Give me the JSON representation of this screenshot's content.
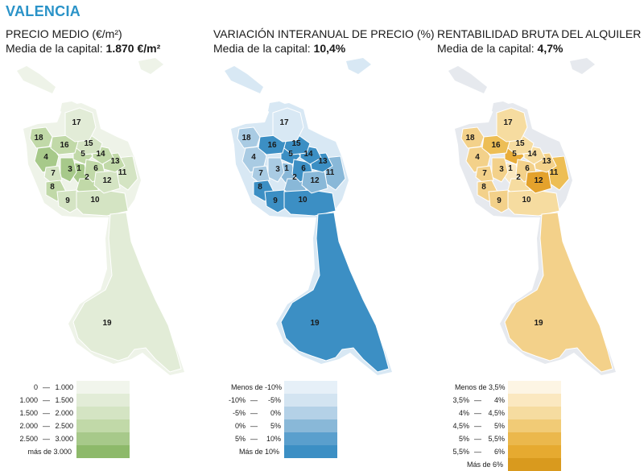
{
  "header": {
    "city": "VALENCIA"
  },
  "panels": [
    {
      "title": "PRECIO MEDIO (€/m²)",
      "subtitle_prefix": "Media de la capital: ",
      "subtitle_value": "1.870 €/m²",
      "district_colors": {
        "1": "#a7c98a",
        "2": "#c1d9a8",
        "3": "#a7c98a",
        "4": "#a7c98a",
        "5": "#c1d9a8",
        "6": "#c1d9a8",
        "7": "#d4e4c3",
        "8": "#c1d9a8",
        "9": "#d4e4c3",
        "10": "#d4e4c3",
        "11": "#d4e4c3",
        "12": "#d4e4c3",
        "13": "#c1d9a8",
        "14": "#c1d9a8",
        "15": "#d4e4c3",
        "16": "#c1d9a8",
        "17": "#e2ecd7",
        "18": "#c1d9a8",
        "19": "#e2ecd7"
      },
      "outline_color": "#eef3e8",
      "legend": [
        {
          "from": "0",
          "dash": "—",
          "to": "1.000",
          "color": "#f1f5ec"
        },
        {
          "from": "1.000",
          "dash": "—",
          "to": "1.500",
          "color": "#e2ecd7"
        },
        {
          "from": "1.500",
          "dash": "—",
          "to": "2.000",
          "color": "#d4e4c3"
        },
        {
          "from": "2.000",
          "dash": "—",
          "to": "2.500",
          "color": "#c1d9a8"
        },
        {
          "from": "2.500",
          "dash": "—",
          "to": "3.000",
          "color": "#a7c98a"
        },
        {
          "single": "más de 3.000",
          "color": "#8db96a"
        }
      ]
    },
    {
      "title": "VARIACIÓN INTERANUAL DE PRECIO (%)",
      "subtitle_prefix": "Media de la capital: ",
      "subtitle_value": "10,4%",
      "district_colors": {
        "1": "#89b8d8",
        "2": "#89b8d8",
        "3": "#a9cbe3",
        "4": "#a9cbe3",
        "5": "#3c8fc4",
        "6": "#3c8fc4",
        "7": "#a9cbe3",
        "8": "#3c8fc4",
        "9": "#3c8fc4",
        "10": "#3c8fc4",
        "11": "#89b8d8",
        "12": "#89b8d8",
        "13": "#3c8fc4",
        "14": "#3c8fc4",
        "15": "#3c8fc4",
        "16": "#3c8fc4",
        "17": "#d8e8f4",
        "18": "#a9cbe3",
        "19": "#3c8fc4"
      },
      "outline_color": "#d8e8f4",
      "legend": [
        {
          "single": "Menos de -10%",
          "color": "#e6f0f8"
        },
        {
          "from": "-10%",
          "dash": "—",
          "to": "-5%",
          "color": "#d3e4f1"
        },
        {
          "from": "-5%",
          "dash": "—",
          "to": "0%",
          "color": "#b4d1e7"
        },
        {
          "from": "0%",
          "dash": "—",
          "to": "5%",
          "color": "#89b8d8"
        },
        {
          "from": "5%",
          "dash": "—",
          "to": "10%",
          "color": "#5a9fcd"
        },
        {
          "single": "Más de 10%",
          "color": "#3c8fc4"
        }
      ]
    },
    {
      "title": "RENTABILIDAD BRUTA DEL ALQUILER (%)",
      "subtitle_prefix": "Media de la capital: ",
      "subtitle_value": "4,7%",
      "district_colors": {
        "1": "#fbe8c0",
        "2": "#f6dca0",
        "3": "#f3d18a",
        "4": "#f3d18a",
        "5": "#e9ad3a",
        "6": "#f3d18a",
        "7": "#f3d18a",
        "8": "#f3d18a",
        "9": "#f3d18a",
        "10": "#f6dca0",
        "11": "#edbe55",
        "12": "#e4a22c",
        "13": "#f3d18a",
        "14": "#f6dca0",
        "15": "#f6dca0",
        "16": "#edbe55",
        "17": "#f6dca0",
        "18": "#f3d18a",
        "19": "#f3d18a"
      },
      "outline_color": "#e6e9ee",
      "legend": [
        {
          "single": "Menos de 3,5%",
          "color": "#fdf5e4"
        },
        {
          "from": "3,5%",
          "dash": "—",
          "to": "4%",
          "color": "#fbe8c0"
        },
        {
          "from": "4%",
          "dash": "—",
          "to": "4,5%",
          "color": "#f6dca0"
        },
        {
          "from": "4,5%",
          "dash": "—",
          "to": "5%",
          "color": "#f1cb76"
        },
        {
          "from": "5%",
          "dash": "—",
          "to": "5,5%",
          "color": "#ebb84c"
        },
        {
          "from": "5,5%",
          "dash": "—",
          "to": "6%",
          "color": "#e6aa30"
        },
        {
          "single": "Más de 6%",
          "color": "#d99a1e"
        }
      ]
    }
  ],
  "district_labels": [
    "1",
    "2",
    "3",
    "4",
    "5",
    "6",
    "7",
    "8",
    "9",
    "10",
    "11",
    "12",
    "13",
    "14",
    "15",
    "16",
    "17",
    "18",
    "19"
  ]
}
